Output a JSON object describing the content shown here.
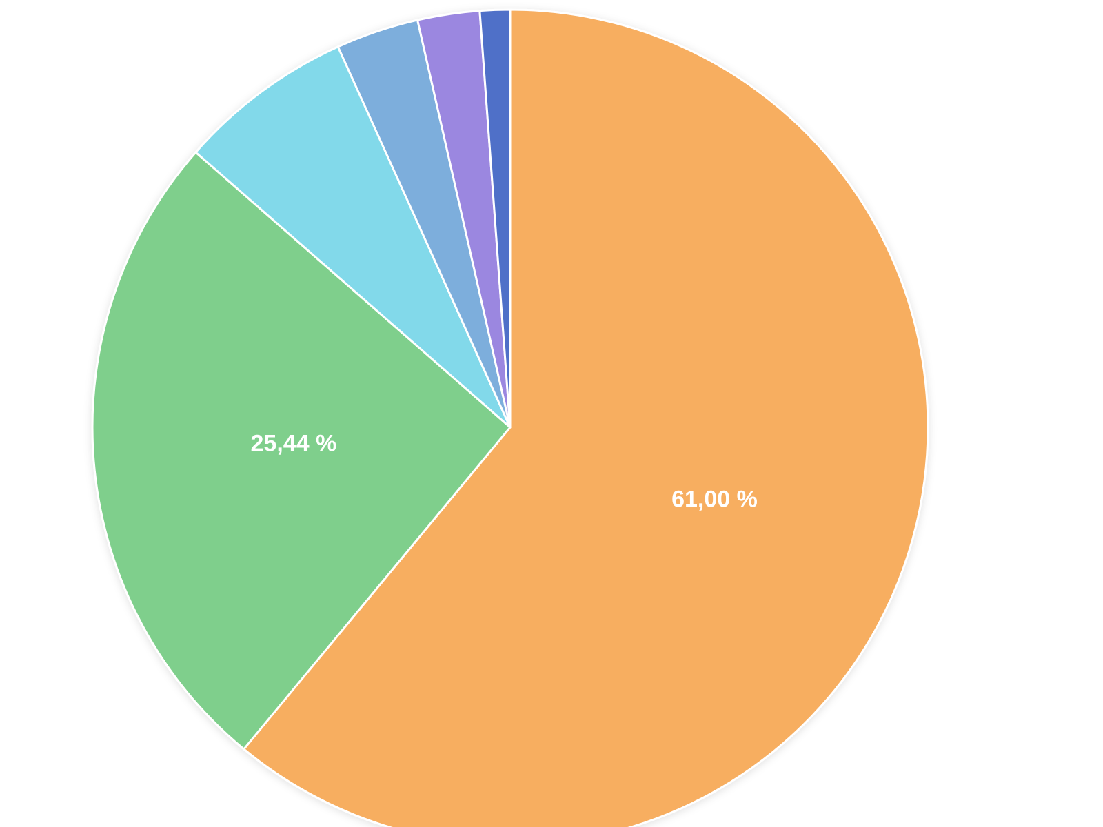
{
  "chart_data": {
    "type": "pie",
    "values": [
      61.0,
      25.44,
      6.8,
      3.2,
      2.4,
      1.16
    ],
    "value_labels": [
      "61,00 %",
      "25,44 %",
      null,
      null,
      null,
      null
    ],
    "colors": [
      "#f7ae61",
      "#7fcf8c",
      "#82d9ea",
      "#7daedc",
      "#9b87e0",
      "#4f6fc8"
    ]
  }
}
